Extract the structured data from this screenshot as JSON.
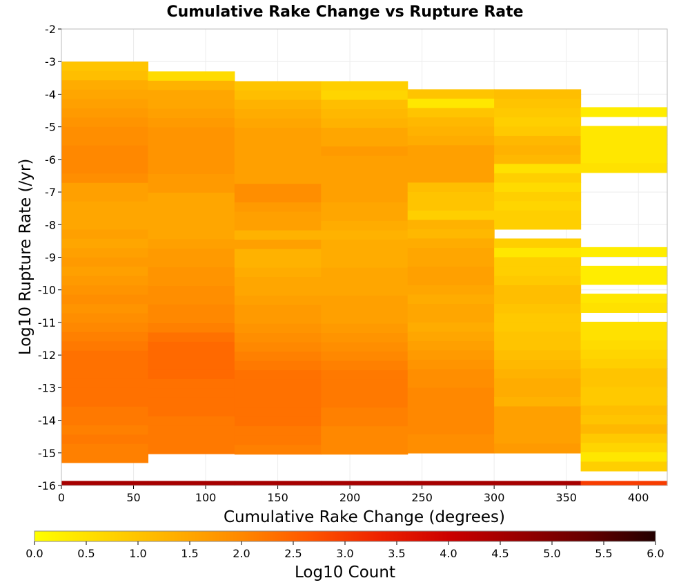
{
  "chart_data": {
    "type": "heatmap",
    "title": "Cumulative Rake Change vs Rupture Rate",
    "xlabel": "Cumulative Rake Change (degrees)",
    "ylabel": "Log10 Rupture Rate (/yr)",
    "xlim": [
      0,
      420
    ],
    "ylim": [
      -16,
      -2
    ],
    "x_ticks": [
      0,
      50,
      100,
      150,
      200,
      250,
      300,
      350,
      400
    ],
    "y_ticks": [
      -2,
      -3,
      -4,
      -5,
      -6,
      -7,
      -8,
      -9,
      -10,
      -11,
      -12,
      -13,
      -14,
      -15,
      -16
    ],
    "grid": true,
    "x_bin_edges": [
      0,
      60,
      120,
      180,
      240,
      300,
      360,
      420
    ],
    "y_bin_width": 0.286,
    "colorbar": {
      "label": "Log10 Count",
      "range": [
        0,
        6
      ],
      "ticks": [
        "0.0",
        "0.5",
        "1.0",
        "1.5",
        "2.0",
        "2.5",
        "3.0",
        "3.5",
        "4.0",
        "4.5",
        "5.0",
        "5.5",
        "6.0"
      ],
      "colormap": [
        "#ffff00",
        "#ffd700",
        "#ffb000",
        "#ff8800",
        "#ff5500",
        "#ee2200",
        "#cc0000",
        "#990000",
        "#660000",
        "#220000"
      ]
    },
    "columns": [
      {
        "x_start": 0,
        "x_end": 60,
        "y_top": -3.0,
        "values": [
          1.0,
          1.1,
          1.4,
          1.5,
          1.6,
          1.7,
          1.8,
          1.9,
          1.9,
          2.0,
          2.0,
          2.0,
          1.9,
          1.6,
          1.6,
          1.5,
          1.5,
          1.5,
          1.6,
          1.5,
          1.6,
          1.7,
          1.6,
          1.7,
          1.8,
          1.9,
          1.8,
          1.9,
          2.0,
          2.1,
          2.2,
          2.3,
          2.3,
          2.3,
          2.3,
          2.3,
          2.3,
          2.2,
          2.2,
          2.1,
          2.2,
          2.1,
          2.1,
          4.5
        ]
      },
      {
        "x_start": 60,
        "x_end": 120,
        "y_top": -3.3,
        "values": [
          0.6,
          1.3,
          1.5,
          1.5,
          1.6,
          1.7,
          1.8,
          1.8,
          1.8,
          1.8,
          1.8,
          1.7,
          1.7,
          1.5,
          1.5,
          1.5,
          1.5,
          1.5,
          1.6,
          1.7,
          1.7,
          1.8,
          1.8,
          1.9,
          1.9,
          2.0,
          2.0,
          2.1,
          2.3,
          2.4,
          2.4,
          2.4,
          2.4,
          2.3,
          2.3,
          2.3,
          2.3,
          2.2,
          2.2,
          2.2,
          2.2,
          4.5
        ]
      },
      {
        "x_start": 120,
        "x_end": 180,
        "y_top": -3.6,
        "values": [
          1.0,
          1.1,
          1.3,
          1.4,
          1.5,
          1.6,
          1.6,
          1.6,
          1.6,
          1.6,
          1.6,
          1.9,
          1.9,
          1.7,
          1.6,
          1.6,
          1.3,
          1.6,
          1.3,
          1.3,
          1.4,
          1.5,
          1.5,
          1.6,
          1.7,
          1.7,
          1.8,
          1.9,
          2.0,
          2.1,
          2.2,
          2.3,
          2.3,
          2.3,
          2.3,
          2.3,
          2.3,
          2.2,
          2.2,
          2.1,
          4.5
        ]
      },
      {
        "x_start": 180,
        "x_end": 240,
        "y_top": -3.6,
        "values": [
          0.8,
          0.7,
          1.1,
          1.2,
          1.3,
          1.5,
          1.5,
          1.7,
          1.6,
          1.6,
          1.6,
          1.6,
          1.6,
          1.5,
          1.5,
          1.4,
          1.3,
          1.4,
          1.4,
          1.4,
          1.5,
          1.5,
          1.5,
          1.6,
          1.6,
          1.6,
          1.7,
          1.8,
          1.9,
          2.0,
          2.1,
          2.2,
          2.2,
          2.2,
          2.2,
          2.1,
          2.1,
          2.0,
          2.0,
          2.0,
          4.5
        ]
      },
      {
        "x_start": 240,
        "x_end": 300,
        "y_top": -3.85,
        "values": [
          1.0,
          0.4,
          1.0,
          1.2,
          1.3,
          1.4,
          1.6,
          1.6,
          1.6,
          1.6,
          1.1,
          1.0,
          1.0,
          0.8,
          1.3,
          1.2,
          1.4,
          1.5,
          1.5,
          1.6,
          1.6,
          1.5,
          1.4,
          1.5,
          1.5,
          1.4,
          1.5,
          1.6,
          1.7,
          1.8,
          1.9,
          1.9,
          2.0,
          2.0,
          2.0,
          2.0,
          2.0,
          1.9,
          1.9,
          4.5
        ]
      },
      {
        "x_start": 300,
        "x_end": 360,
        "y_top": -3.85,
        "values": [
          1.1,
          1.0,
          0.9,
          0.8,
          0.9,
          1.2,
          1.3,
          1.2,
          0.5,
          0.8,
          0.6,
          0.8,
          0.7,
          0.8,
          0.8,
          null,
          0.8,
          0.4,
          0.8,
          0.8,
          0.9,
          1.1,
          1.1,
          1.0,
          0.9,
          0.9,
          1.0,
          1.0,
          1.1,
          1.2,
          1.3,
          1.4,
          1.4,
          1.3,
          1.6,
          1.6,
          1.6,
          1.6,
          1.7,
          4.5
        ]
      },
      {
        "x_start": 360,
        "x_end": 420,
        "y_top": -4.4,
        "values": [
          0.3,
          null,
          0.4,
          0.4,
          0.4,
          0.4,
          0.5,
          null,
          null,
          null,
          null,
          null,
          null,
          null,
          null,
          0.3,
          null,
          0.3,
          0.3,
          null,
          0.4,
          0.5,
          null,
          0.5,
          0.5,
          0.6,
          0.7,
          0.8,
          1.0,
          1.0,
          0.9,
          0.9,
          1.1,
          1.0,
          1.2,
          0.9,
          0.7,
          0.4,
          0.8,
          3.0
        ]
      }
    ]
  }
}
